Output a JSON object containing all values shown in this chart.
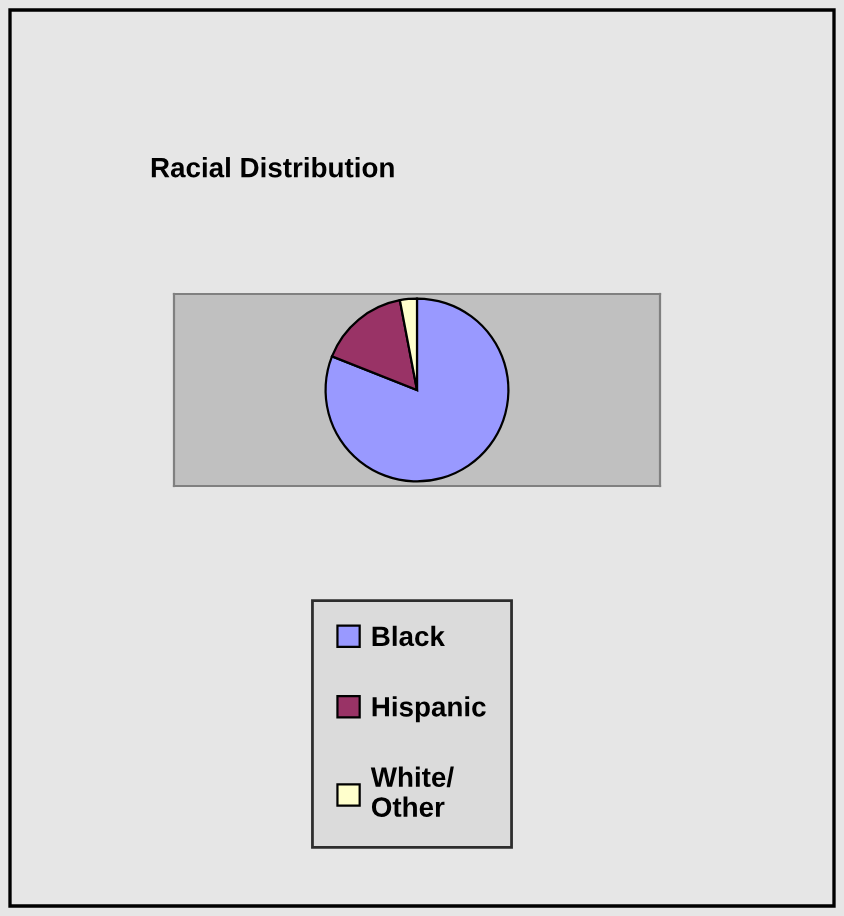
{
  "chart_data": {
    "type": "pie",
    "title": "Racial Distribution",
    "categories": [
      "Black",
      "Hispanic",
      "White/\nOther"
    ],
    "values": [
      81,
      16,
      3
    ],
    "colors": [
      "#9999ff",
      "#993366",
      "#ffffcc"
    ],
    "legend": "bottom"
  }
}
